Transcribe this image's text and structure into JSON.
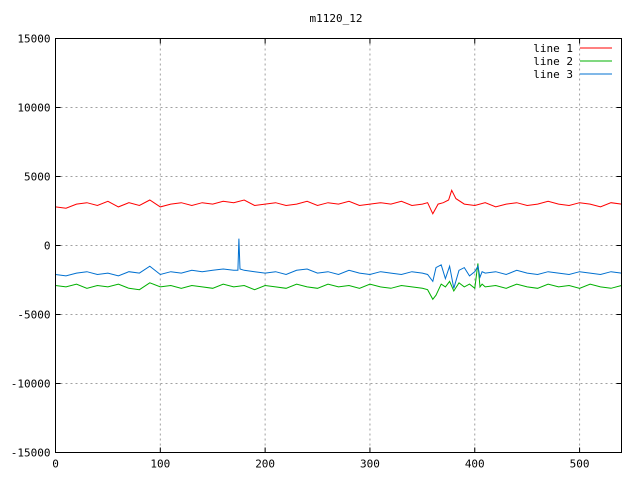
{
  "chart_data": {
    "type": "line",
    "title": "m1120_12",
    "xlim": [
      0,
      540
    ],
    "ylim": [
      -15000,
      15000
    ],
    "x_ticks": [
      0,
      100,
      200,
      300,
      400,
      500
    ],
    "y_ticks": [
      -15000,
      -10000,
      -5000,
      0,
      5000,
      10000,
      15000
    ],
    "x_tick_labels": [
      "0",
      "100",
      "200",
      "300",
      "400",
      "500"
    ],
    "y_tick_labels": [
      "-15000",
      "-10000",
      "-5000",
      "0",
      "5000",
      "10000",
      "15000"
    ],
    "grid": true,
    "legend_position": "top-right",
    "series": [
      {
        "name": "line 1",
        "color": "#ff0000",
        "x": [
          0,
          10,
          20,
          30,
          40,
          50,
          60,
          70,
          80,
          90,
          100,
          110,
          120,
          130,
          140,
          150,
          160,
          170,
          180,
          190,
          200,
          210,
          220,
          230,
          240,
          250,
          260,
          270,
          280,
          290,
          300,
          310,
          320,
          330,
          340,
          350,
          355,
          360,
          365,
          370,
          375,
          378,
          382,
          390,
          400,
          410,
          420,
          430,
          440,
          450,
          460,
          470,
          480,
          490,
          500,
          510,
          520,
          530,
          540
        ],
        "y": [
          2800,
          2700,
          3000,
          3100,
          2900,
          3200,
          2800,
          3100,
          2900,
          3300,
          2800,
          3000,
          3100,
          2900,
          3100,
          3000,
          3200,
          3100,
          3300,
          2900,
          3000,
          3100,
          2900,
          3000,
          3200,
          2900,
          3100,
          3000,
          3200,
          2900,
          3000,
          3100,
          3000,
          3200,
          2900,
          3000,
          3100,
          2300,
          3000,
          3100,
          3300,
          4000,
          3400,
          3000,
          2900,
          3100,
          2800,
          3000,
          3100,
          2900,
          3000,
          3200,
          3000,
          2900,
          3100,
          3000,
          2800,
          3100,
          3000
        ]
      },
      {
        "name": "line 2",
        "color": "#00b000",
        "x": [
          0,
          10,
          20,
          30,
          40,
          50,
          60,
          70,
          80,
          90,
          100,
          110,
          120,
          130,
          140,
          150,
          160,
          170,
          180,
          190,
          200,
          210,
          220,
          230,
          240,
          250,
          260,
          270,
          280,
          290,
          300,
          310,
          320,
          330,
          340,
          350,
          355,
          360,
          363,
          368,
          372,
          376,
          380,
          385,
          390,
          395,
          400,
          403,
          405,
          407,
          410,
          420,
          430,
          440,
          450,
          460,
          470,
          480,
          490,
          500,
          510,
          520,
          530,
          540
        ],
        "y": [
          -2900,
          -3000,
          -2800,
          -3100,
          -2900,
          -3000,
          -2800,
          -3100,
          -3200,
          -2700,
          -3000,
          -2900,
          -3100,
          -2900,
          -3000,
          -3100,
          -2800,
          -3000,
          -2900,
          -3200,
          -2900,
          -3000,
          -3100,
          -2800,
          -3000,
          -3100,
          -2800,
          -3000,
          -2900,
          -3100,
          -2800,
          -3000,
          -3100,
          -2900,
          -3000,
          -3100,
          -3200,
          -3900,
          -3600,
          -2800,
          -3000,
          -2600,
          -3300,
          -2700,
          -3000,
          -2800,
          -3100,
          -1300,
          -3000,
          -2800,
          -3000,
          -2900,
          -3100,
          -2800,
          -3000,
          -3100,
          -2800,
          -3000,
          -2900,
          -3100,
          -2800,
          -3000,
          -3100,
          -2900
        ]
      },
      {
        "name": "line 3",
        "color": "#0070d0",
        "x": [
          0,
          10,
          20,
          30,
          40,
          50,
          60,
          70,
          80,
          90,
          100,
          110,
          120,
          130,
          140,
          150,
          160,
          170,
          174,
          175,
          176,
          180,
          190,
          200,
          210,
          220,
          230,
          240,
          250,
          260,
          270,
          280,
          290,
          300,
          310,
          320,
          330,
          340,
          350,
          355,
          360,
          363,
          368,
          372,
          376,
          380,
          385,
          390,
          395,
          400,
          403,
          405,
          407,
          410,
          420,
          430,
          440,
          450,
          460,
          470,
          480,
          490,
          500,
          510,
          520,
          530,
          540
        ],
        "y": [
          -2100,
          -2200,
          -2000,
          -1900,
          -2100,
          -2000,
          -2200,
          -1900,
          -2000,
          -1500,
          -2100,
          -1900,
          -2000,
          -1800,
          -1900,
          -1800,
          -1700,
          -1800,
          -1800,
          500,
          -1700,
          -1800,
          -1900,
          -2000,
          -1900,
          -2100,
          -1800,
          -1700,
          -2000,
          -1900,
          -2100,
          -1800,
          -2000,
          -2100,
          -1900,
          -2000,
          -2100,
          -1900,
          -2000,
          -2100,
          -2600,
          -1600,
          -1400,
          -2400,
          -1500,
          -3100,
          -1800,
          -1600,
          -2200,
          -1900,
          -1500,
          -2300,
          -1900,
          -2000,
          -1900,
          -2100,
          -1800,
          -2000,
          -2100,
          -1900,
          -2000,
          -2100,
          -1900,
          -2000,
          -2100,
          -1900,
          -2000
        ]
      }
    ]
  }
}
